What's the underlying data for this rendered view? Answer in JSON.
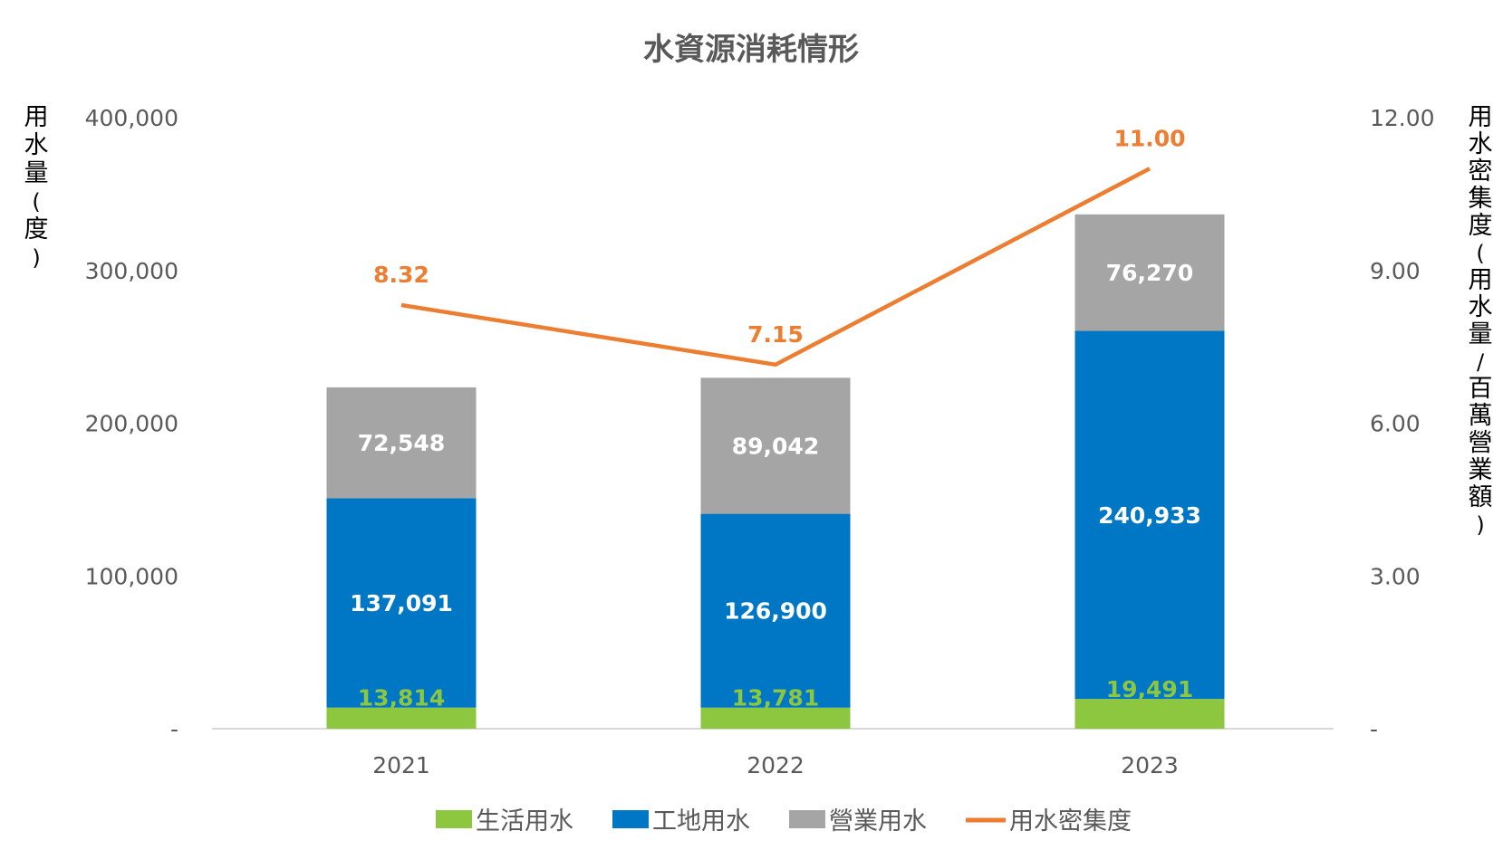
{
  "chart_data": {
    "type": "bar",
    "title": "水資源消耗情形",
    "categories": [
      "2021",
      "2022",
      "2023"
    ],
    "stacked": true,
    "series": [
      {
        "name": "生活用水",
        "color": "#8DC63F",
        "values": [
          13814,
          13781,
          19491
        ],
        "labels": [
          "13,814",
          "13,781",
          "19,491"
        ],
        "label_color": "#8DC63F"
      },
      {
        "name": "工地用水",
        "color": "#0077C4",
        "values": [
          137091,
          126900,
          240933
        ],
        "labels": [
          "137,091",
          "126,900",
          "240,933"
        ],
        "label_color": "#FFFFFF"
      },
      {
        "name": "營業用水",
        "color": "#A5A5A5",
        "values": [
          72548,
          89042,
          76270
        ],
        "labels": [
          "72,548",
          "89,042",
          "76,270"
        ],
        "label_color": "#FFFFFF"
      }
    ],
    "line_series": {
      "name": "用水密集度",
      "color": "#ED7D31",
      "axis": "right",
      "values": [
        8.32,
        7.15,
        11.0
      ],
      "labels": [
        "8.32",
        "7.15",
        "11.00"
      ]
    },
    "ylabel": "用水量(度)",
    "y2label": "用水密集度(用水量/百萬營業額)",
    "ylim": [
      0,
      400000
    ],
    "y2lim": [
      0,
      12
    ],
    "y_ticks": [
      "-",
      "100,000",
      "200,000",
      "300,000",
      "400,000"
    ],
    "y2_ticks": [
      "-",
      "3.00",
      "6.00",
      "9.00",
      "12.00"
    ],
    "grid": false,
    "legend_position": "bottom"
  }
}
